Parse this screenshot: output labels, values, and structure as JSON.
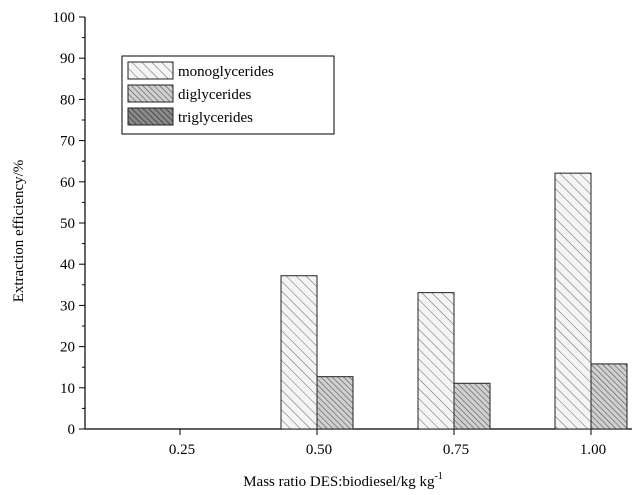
{
  "chart_data": {
    "type": "bar",
    "categories": [
      "0.25",
      "0.50",
      "0.75",
      "1.00"
    ],
    "series": [
      {
        "name": "monoglycerides",
        "values": [
          0,
          37.2,
          33.1,
          62.1
        ],
        "color": "#f2f2f2",
        "pattern": "sparse-hatch"
      },
      {
        "name": "diglycerides",
        "values": [
          0,
          12.7,
          11.1,
          15.8
        ],
        "color": "#b8b8b8",
        "pattern": "dense-hatch"
      },
      {
        "name": "triglycerides",
        "values": [
          0,
          0,
          0,
          0
        ],
        "color": "#7a7a7a",
        "pattern": "dark-hatch"
      }
    ],
    "xlabel": "Mass ratio DES:biodiesel/kg kg",
    "xlabel_superscript": "-1",
    "ylabel": "Extraction efficiency/%",
    "ylim": [
      0,
      100
    ],
    "yticks": [
      "0",
      "10",
      "20",
      "30",
      "40",
      "50",
      "60",
      "70",
      "80",
      "90",
      "100"
    ],
    "legend_position": "top-left",
    "grid": false
  }
}
